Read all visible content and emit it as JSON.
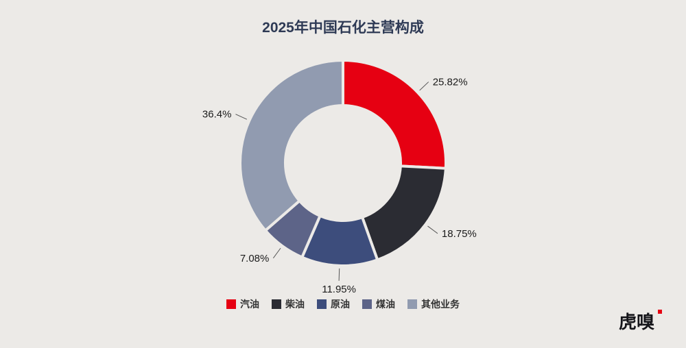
{
  "chart_data": {
    "type": "pie",
    "subtype": "donut",
    "title": "2025年中国石化主营构成",
    "unit": "%",
    "legend_position": "bottom",
    "series": [
      {
        "label": "汽油",
        "value": 25.82,
        "display": "25.82%",
        "color": "#e60012"
      },
      {
        "label": "柴油",
        "value": 18.75,
        "display": "18.75%",
        "color": "#2b2c33"
      },
      {
        "label": "原油",
        "value": 11.95,
        "display": "11.95%",
        "color": "#3d4d7c"
      },
      {
        "label": "煤油",
        "value": 7.08,
        "display": "7.08%",
        "color": "#5d6488"
      },
      {
        "label": "其他业务",
        "value": 36.4,
        "display": "36.4%",
        "color": "#919bb0"
      }
    ]
  },
  "branding": {
    "logo_text": "虎嗅",
    "logo_accent_color": "#e60012"
  },
  "style": {
    "background": "#eceae7",
    "title_color": "#2e3a55",
    "label_color": "#1a1a1a",
    "leader_line_color": "#555555"
  }
}
